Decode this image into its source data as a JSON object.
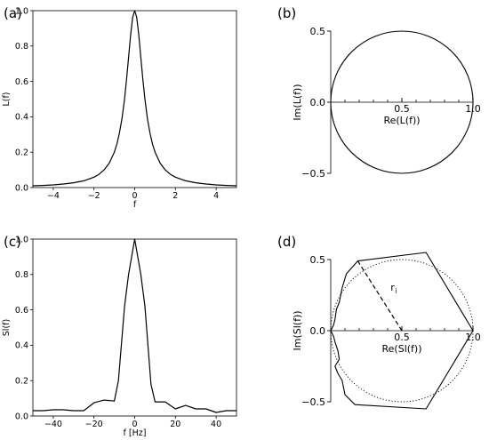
{
  "chart_data": [
    {
      "id": "a",
      "panel_label": "(a)",
      "type": "line",
      "xlabel": "f",
      "ylabel": "L(f)",
      "xlim": [
        -5,
        5
      ],
      "ylim": [
        0,
        1.0
      ],
      "xticks": [
        -4,
        -2,
        0,
        2,
        4
      ],
      "xtick_labels": [
        "−4",
        "−2",
        "0",
        "2",
        "4"
      ],
      "yticks": [
        0.0,
        0.2,
        0.4,
        0.6,
        0.8,
        1.0
      ],
      "ytick_labels": [
        "0.0",
        "0.2",
        "0.4",
        "0.6",
        "0.8",
        "1.0"
      ],
      "series": [
        {
          "x": [
            -5,
            -4.5,
            -4,
            -3.5,
            -3,
            -2.5,
            -2,
            -1.75,
            -1.5,
            -1.25,
            -1,
            -0.875,
            -0.75,
            -0.625,
            -0.5,
            -0.4,
            -0.3,
            -0.2,
            -0.1,
            0,
            0.1,
            0.2,
            0.3,
            0.4,
            0.5,
            0.625,
            0.75,
            0.875,
            1,
            1.25,
            1.5,
            1.75,
            2,
            2.5,
            3,
            3.5,
            4,
            4.5,
            5
          ],
          "y": [
            0.01,
            0.012,
            0.015,
            0.02,
            0.027,
            0.038,
            0.059,
            0.075,
            0.1,
            0.138,
            0.2,
            0.246,
            0.308,
            0.39,
            0.5,
            0.61,
            0.735,
            0.862,
            0.962,
            1.0,
            0.962,
            0.862,
            0.735,
            0.61,
            0.5,
            0.39,
            0.308,
            0.246,
            0.2,
            0.138,
            0.1,
            0.075,
            0.059,
            0.038,
            0.027,
            0.02,
            0.015,
            0.012,
            0.01
          ]
        }
      ]
    },
    {
      "id": "b",
      "panel_label": "(b)",
      "type": "line",
      "xlabel": "Re(L(f))",
      "ylabel": "Im(L(f))",
      "xlim": [
        0,
        1.0
      ],
      "ylim": [
        -0.5,
        0.5
      ],
      "xticks": [
        0.5,
        1.0
      ],
      "xtick_labels": [
        "0.5",
        "1.0"
      ],
      "yticks": [
        -0.5,
        0.0,
        0.5
      ],
      "ytick_labels": [
        "−0.5",
        "0.0",
        "0.5"
      ],
      "circle": {
        "center": [
          0.5,
          0
        ],
        "radius": 0.5
      }
    },
    {
      "id": "c",
      "panel_label": "(c)",
      "type": "line",
      "xlabel": "f [Hz]",
      "ylabel": "Sl(f)",
      "xlim": [
        -50,
        50
      ],
      "ylim": [
        0,
        1.0
      ],
      "xticks": [
        -40,
        -20,
        0,
        20,
        40
      ],
      "xtick_labels": [
        "−40",
        "−20",
        "0",
        "20",
        "40"
      ],
      "yticks": [
        0.0,
        0.2,
        0.4,
        0.6,
        0.8,
        1.0
      ],
      "ytick_labels": [
        "0.0",
        "0.2",
        "0.4",
        "0.6",
        "0.8",
        "1.0"
      ],
      "series": [
        {
          "x": [
            -50,
            -45,
            -40,
            -35,
            -30,
            -25,
            -20,
            -15,
            -10,
            -8,
            -5,
            -3,
            0,
            3,
            5,
            8,
            10,
            15,
            20,
            25,
            30,
            35,
            40,
            45,
            50
          ],
          "y": [
            0.03,
            0.03,
            0.035,
            0.035,
            0.03,
            0.03,
            0.075,
            0.09,
            0.085,
            0.2,
            0.62,
            0.8,
            1.0,
            0.8,
            0.62,
            0.18,
            0.08,
            0.08,
            0.04,
            0.06,
            0.04,
            0.04,
            0.02,
            0.03,
            0.03
          ]
        }
      ]
    },
    {
      "id": "d",
      "panel_label": "(d)",
      "type": "line",
      "xlabel": "Re(Sl(f))",
      "ylabel": "Im(Sl(f))",
      "xlim": [
        0,
        1.0
      ],
      "ylim": [
        -0.5,
        0.5
      ],
      "xticks": [
        0.5,
        1.0
      ],
      "xtick_labels": [
        "0.5",
        "1.0"
      ],
      "yticks": [
        -0.5,
        0.0,
        0.5
      ],
      "ytick_labels": [
        "−0.5",
        "0.0",
        "0.5"
      ],
      "annotation": "r",
      "annotation_sub": "i",
      "reference_circle": {
        "center": [
          0.5,
          0
        ],
        "radius": 0.5
      },
      "radius_line": {
        "from": [
          0.5,
          0
        ],
        "to": [
          0.19,
          0.49
        ]
      },
      "series": [
        {
          "x": [
            1.0,
            0.67,
            0.19,
            0.11,
            0.08,
            0.07,
            0.06,
            0.04,
            0.03,
            0.02,
            0.0,
            0.02,
            0.03,
            0.05,
            0.06,
            0.03,
            0.05,
            0.08,
            0.09,
            0.1,
            0.17,
            0.67,
            1.0
          ],
          "y": [
            0.0,
            0.55,
            0.49,
            0.4,
            0.3,
            0.25,
            0.2,
            0.15,
            0.08,
            0.04,
            0.0,
            -0.04,
            -0.08,
            -0.14,
            -0.2,
            -0.25,
            -0.3,
            -0.35,
            -0.4,
            -0.45,
            -0.52,
            -0.55,
            0.0
          ]
        }
      ]
    }
  ]
}
